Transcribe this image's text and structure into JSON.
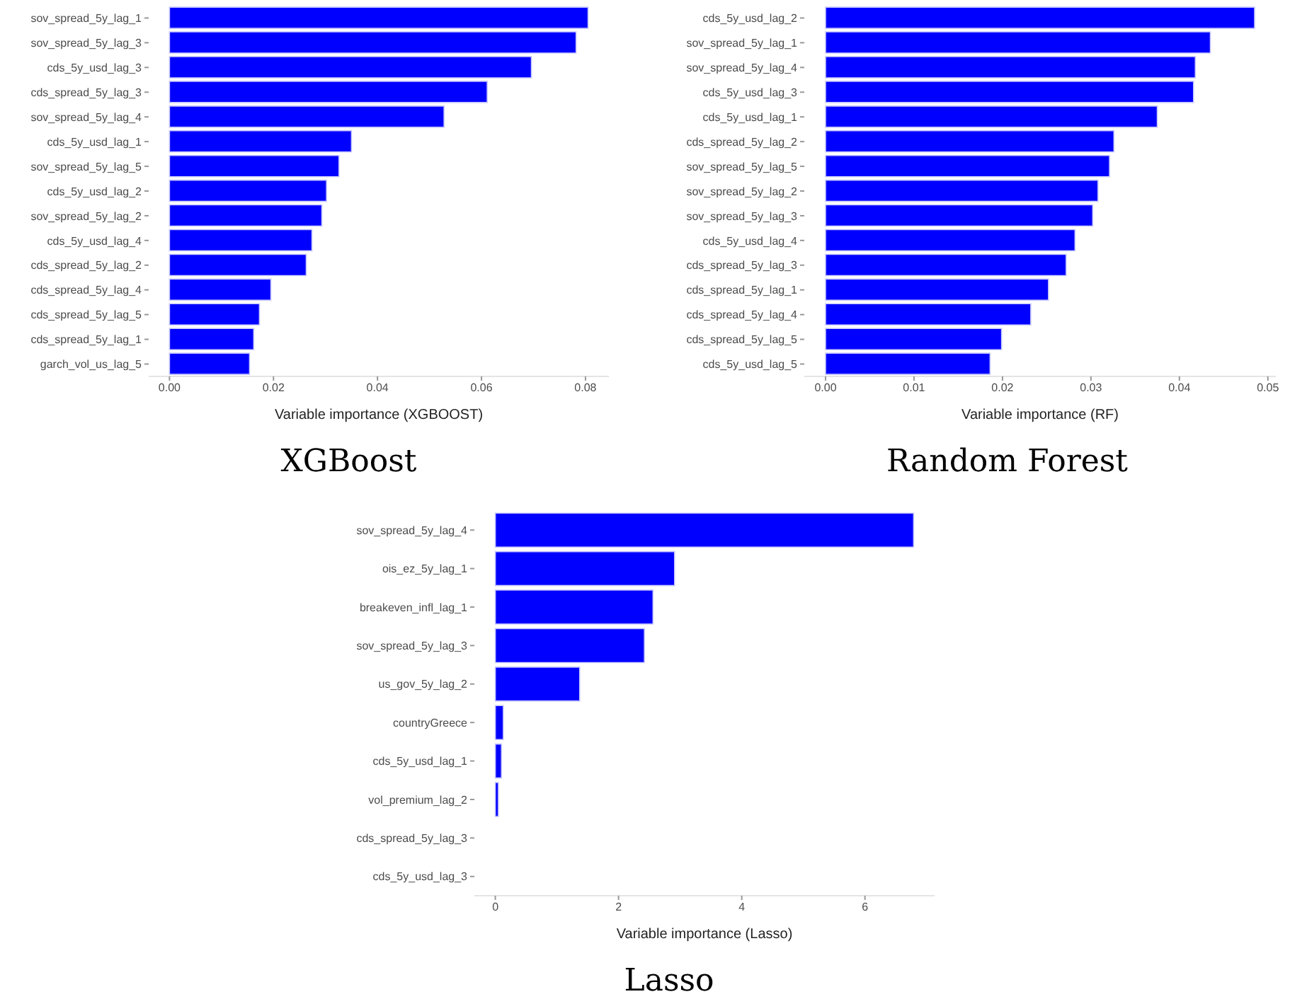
{
  "chart_data": [
    {
      "type": "bar",
      "orientation": "horizontal",
      "title": "XGBoost",
      "xlabel": "Variable importance (XGBOOST)",
      "categories": [
        "sov_spread_5y_lag_1",
        "sov_spread_5y_lag_3",
        "cds_5y_usd_lag_3",
        "cds_spread_5y_lag_3",
        "sov_spread_5y_lag_4",
        "cds_5y_usd_lag_1",
        "sov_spread_5y_lag_5",
        "cds_5y_usd_lag_2",
        "sov_spread_5y_lag_2",
        "cds_5y_usd_lag_4",
        "cds_spread_5y_lag_2",
        "cds_spread_5y_lag_4",
        "cds_spread_5y_lag_5",
        "cds_spread_5y_lag_1",
        "garch_vol_us_lag_5"
      ],
      "values": [
        0.0805,
        0.0782,
        0.0696,
        0.0611,
        0.0528,
        0.035,
        0.0326,
        0.0302,
        0.0293,
        0.0274,
        0.0263,
        0.0195,
        0.0173,
        0.0162,
        0.0154
      ],
      "color": "#0000ff",
      "xlim": [
        -0.004,
        0.0845
      ],
      "xticks": [
        {
          "value": 0,
          "label": "0.00"
        },
        0.02,
        0.04,
        0.06,
        0.08
      ]
    },
    {
      "type": "bar",
      "orientation": "horizontal",
      "title": "Random Forest",
      "xlabel": "Variable importance (RF)",
      "categories": [
        "cds_5y_usd_lag_2",
        "sov_spread_5y_lag_1",
        "sov_spread_5y_lag_4",
        "cds_5y_usd_lag_3",
        "cds_5y_usd_lag_1",
        "cds_spread_5y_lag_2",
        "sov_spread_5y_lag_5",
        "sov_spread_5y_lag_2",
        "sov_spread_5y_lag_3",
        "cds_5y_usd_lag_4",
        "cds_spread_5y_lag_3",
        "cds_spread_5y_lag_1",
        "cds_spread_5y_lag_4",
        "cds_spread_5y_lag_5",
        "cds_5y_usd_lag_5"
      ],
      "values": [
        0.0485,
        0.0435,
        0.0418,
        0.0416,
        0.0375,
        0.0326,
        0.0321,
        0.0308,
        0.0302,
        0.0282,
        0.0272,
        0.0252,
        0.0232,
        0.0199,
        0.0186
      ],
      "color": "#0000ff",
      "xlim": [
        -0.0024,
        0.0509
      ],
      "xticks": [
        {
          "value": 0,
          "label": "0.00"
        },
        0.01,
        0.02,
        0.03,
        0.04,
        0.05
      ]
    },
    {
      "type": "bar",
      "orientation": "horizontal",
      "title": "Lasso",
      "xlabel": "Variable importance (Lasso)",
      "categories": [
        "sov_spread_5y_lag_4",
        "ois_ez_5y_lag_1",
        "breakeven_infl_lag_1",
        "sov_spread_5y_lag_3",
        "us_gov_5y_lag_2",
        "countryGreece",
        "cds_5y_usd_lag_1",
        "vol_premium_lag_2",
        "cds_spread_5y_lag_3",
        "cds_5y_usd_lag_3"
      ],
      "values": [
        6.79,
        2.91,
        2.56,
        2.42,
        1.37,
        0.13,
        0.1,
        0.05,
        0,
        0
      ],
      "color": "#0000ff",
      "xlim": [
        -0.34,
        7.13
      ],
      "xticks": [
        0,
        2,
        4,
        6
      ]
    }
  ]
}
